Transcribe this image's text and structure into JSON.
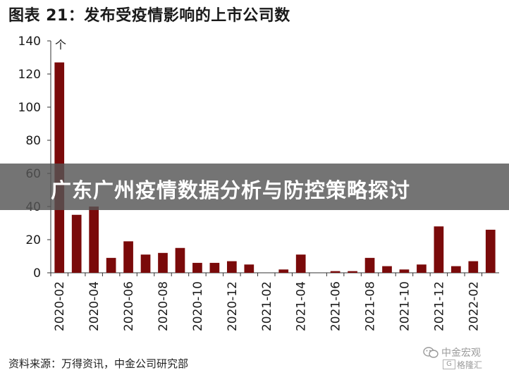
{
  "chart_data": {
    "type": "bar",
    "title": "图表 21：发布受疫情影响的上市公司数",
    "ylabel": "个",
    "xlabel": "",
    "ylim": [
      0,
      140
    ],
    "yticks": [
      0,
      20,
      40,
      60,
      80,
      100,
      120,
      140
    ],
    "grid": false,
    "bar_color": "#7a0a0a",
    "tick_labels": [
      "2020-02",
      "2020-04",
      "2020-06",
      "2020-08",
      "2020-10",
      "2020-12",
      "2021-02",
      "2021-04",
      "2021-06",
      "2021-08",
      "2021-10",
      "2021-12",
      "2022-02"
    ],
    "categories": [
      "2020-02",
      "2020-03",
      "2020-04",
      "2020-05",
      "2020-06",
      "2020-07",
      "2020-08",
      "2020-09",
      "2020-10",
      "2020-11",
      "2020-12",
      "2021-01",
      "2021-02",
      "2021-03",
      "2021-04",
      "2021-05",
      "2021-06",
      "2021-07",
      "2021-08",
      "2021-09",
      "2021-10",
      "2021-11",
      "2021-12",
      "2022-01",
      "2022-02",
      "2022-03"
    ],
    "values": [
      127,
      35,
      40,
      9,
      19,
      11,
      12,
      15,
      6,
      6,
      7,
      5,
      0,
      2,
      11,
      0,
      1,
      1,
      9,
      4,
      2,
      5,
      28,
      4,
      7,
      26
    ]
  },
  "overlay": {
    "banner_text": "广东广州疫情数据分析与防控策略探讨"
  },
  "source_note": "资料来源：万得资讯，中金公司研究部",
  "watermark": {
    "name": "中金宏观",
    "sub": "格隆汇",
    "box": "G",
    "icon": "wechat-icon"
  }
}
